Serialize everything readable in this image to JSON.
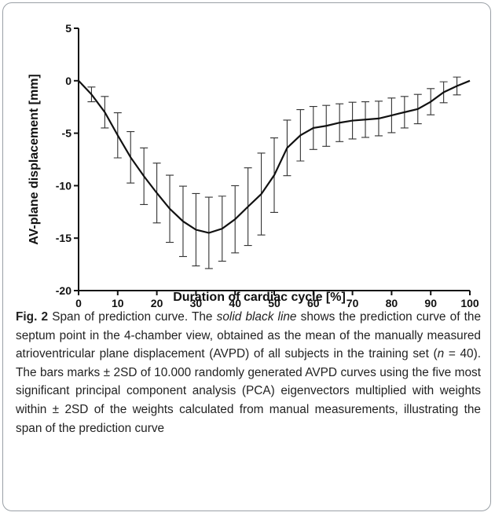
{
  "chart_data": {
    "type": "line",
    "x_label": "Duration of cardiac cycle [%]",
    "y_label": "AV-plane displacement [mm]",
    "x": [
      0,
      3.3,
      6.7,
      10,
      13.3,
      16.7,
      20,
      23.3,
      26.7,
      30,
      33.3,
      36.7,
      40,
      43.3,
      46.7,
      50,
      53.3,
      56.7,
      60,
      63.3,
      66.7,
      70,
      73.3,
      76.7,
      80,
      83.3,
      86.7,
      90,
      93.3,
      96.7,
      100
    ],
    "values": [
      0,
      -1.3,
      -3.0,
      -5.2,
      -7.3,
      -9.1,
      -10.7,
      -12.2,
      -13.4,
      -14.2,
      -14.5,
      -14.1,
      -13.2,
      -12.0,
      -10.8,
      -9.0,
      -6.4,
      -5.2,
      -4.5,
      -4.3,
      -4.0,
      -3.8,
      -3.7,
      -3.6,
      -3.3,
      -3.0,
      -2.7,
      -2.0,
      -1.1,
      -0.5,
      0
    ],
    "errors": [
      null,
      0.7,
      1.5,
      2.15,
      2.45,
      2.7,
      2.85,
      3.2,
      3.35,
      3.45,
      3.4,
      3.1,
      3.2,
      3.7,
      3.9,
      3.55,
      2.65,
      2.45,
      2.05,
      1.95,
      1.8,
      1.75,
      1.7,
      1.65,
      1.65,
      1.5,
      1.4,
      1.25,
      1.0,
      0.85,
      null
    ],
    "color": "#111111",
    "xlim": [
      0,
      100
    ],
    "xticks": [
      0,
      10,
      20,
      30,
      40,
      50,
      60,
      70,
      80,
      90,
      100
    ],
    "ylim": [
      -20,
      5
    ],
    "yticks": [
      -20,
      -15,
      -10,
      -5,
      0,
      5
    ]
  },
  "caption": {
    "label": "Fig. 2",
    "parts": [
      "Span of prediction curve. The ",
      "solid black line",
      " shows the prediction curve of the septum point in the 4-chamber view, obtained as the mean of the manually measured atrioventricular plane displacement (AVPD) of all subjects in the training set (",
      "n",
      " = 40). The bars marks ± 2SD of 10.000 randomly generated AVPD curves using the five most significant principal component analysis (PCA) eigenvectors multiplied with weights within ± 2SD of the weights calculated from manual measurements, illustrating the span of the prediction curve"
    ]
  }
}
